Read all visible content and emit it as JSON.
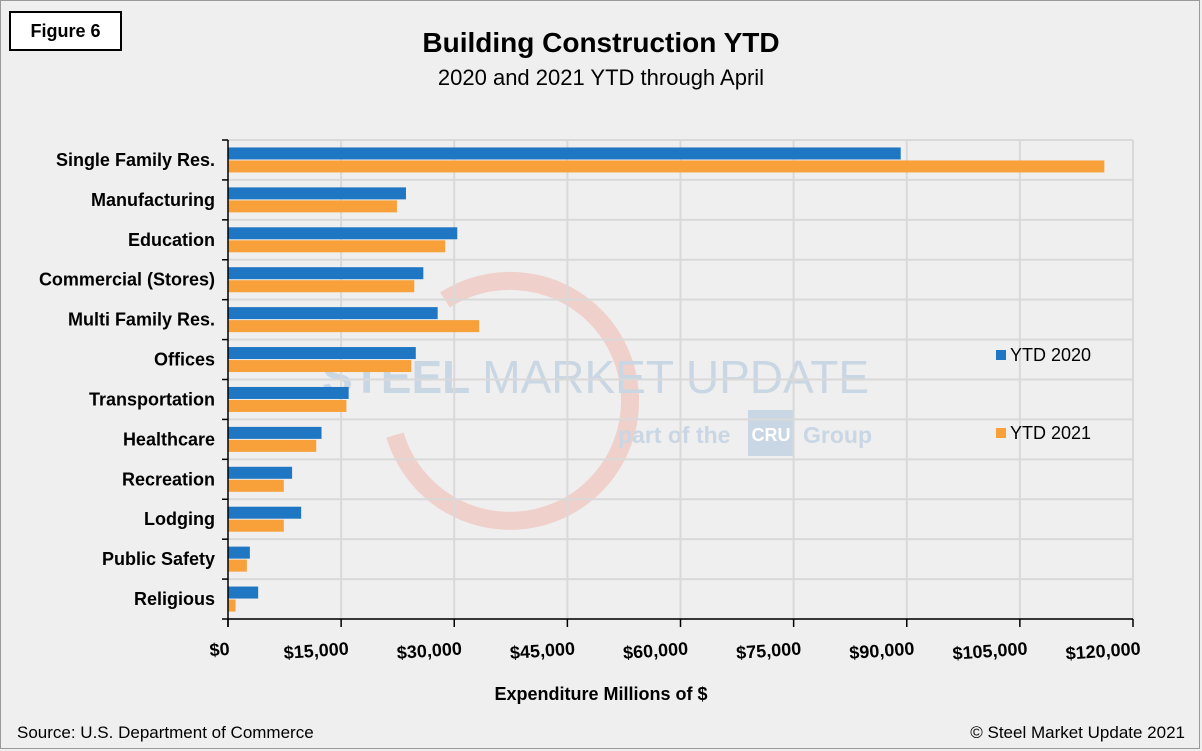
{
  "figure_label": "Figure 6",
  "source": "Source: U.S. Department of Commerce",
  "copyright": "© Steel Market Update 2021",
  "watermark": {
    "line1_bold": "STEEL",
    "line1_rest": "MARKET UPDATE",
    "line2_prefix": "part of the",
    "line2_badge": "CRU",
    "line2_suffix": "Group"
  },
  "colors": {
    "ytd2020": "#1f77c4",
    "ytd2021": "#f8a13a",
    "grid": "#d9d9d9",
    "plot_bg": "#ececec"
  },
  "chart_data": {
    "type": "bar",
    "orientation": "horizontal",
    "title": "Building Construction YTD",
    "subtitle": "2020 and 2021 YTD through April",
    "xlabel": "Expenditure Millions of $",
    "ylabel": "",
    "xlim": [
      0,
      120000
    ],
    "x_ticks": [
      0,
      15000,
      30000,
      45000,
      60000,
      75000,
      90000,
      105000,
      120000
    ],
    "x_tick_labels": [
      "$0",
      "$15,000",
      "$30,000",
      "$45,000",
      "$60,000",
      "$75,000",
      "$90,000",
      "$105,000",
      "$120,000"
    ],
    "grid": true,
    "legend_position": "right",
    "categories": [
      "Single Family Res.",
      "Manufacturing",
      "Education",
      "Commercial (Stores)",
      "Multi Family Res.",
      "Offices",
      "Transportation",
      "Healthcare",
      "Recreation",
      "Lodging",
      "Public Safety",
      "Religious"
    ],
    "series": [
      {
        "name": "YTD 2020",
        "values": [
          89200,
          23600,
          30400,
          25900,
          27800,
          24900,
          16000,
          12400,
          8500,
          9700,
          2900,
          4000
        ]
      },
      {
        "name": "YTD 2021",
        "values": [
          116200,
          22400,
          28800,
          24700,
          33300,
          24300,
          15700,
          11700,
          7400,
          7400,
          2500,
          1000
        ]
      }
    ]
  }
}
